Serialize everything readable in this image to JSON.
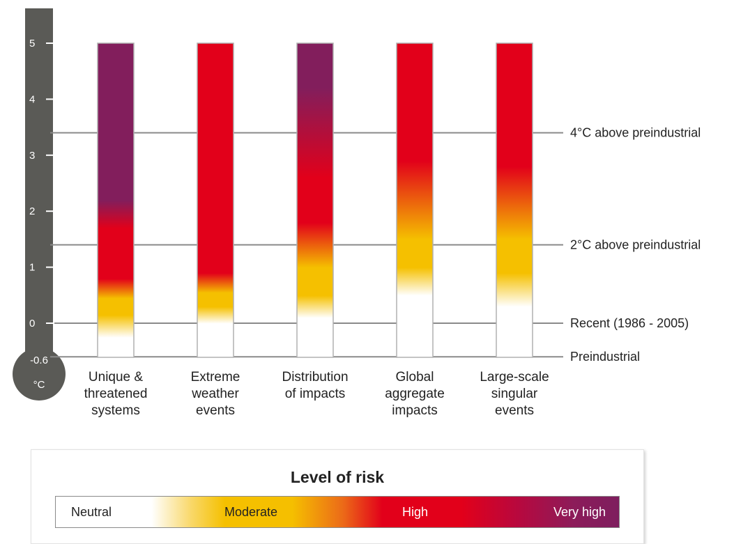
{
  "chart_data": {
    "type": "heatmap",
    "title": "",
    "ylabel": "°C",
    "ylim": [
      -0.6,
      5
    ],
    "y_ticks": [
      5,
      4,
      3,
      2,
      1,
      0
    ],
    "y_bottom_label": "-0.6",
    "y_unit": "°C",
    "reference_lines": [
      {
        "label": "4°C above preindustrial",
        "y": 3.4
      },
      {
        "label": "2°C above preindustrial",
        "y": 1.4
      },
      {
        "label": "Recent (1986 - 2005)",
        "y": 0
      },
      {
        "label": "Preindustrial",
        "y": -0.6
      }
    ],
    "categories": [
      {
        "label": [
          "Unique &",
          "threatened",
          "systems"
        ],
        "risk_transitions": [
          {
            "y": -0.6,
            "level": "neutral"
          },
          {
            "y": -0.25,
            "level": "neutral"
          },
          {
            "y": 0.15,
            "level": "moderate"
          },
          {
            "y": 0.45,
            "level": "moderate"
          },
          {
            "y": 0.8,
            "level": "high"
          },
          {
            "y": 1.7,
            "level": "high"
          },
          {
            "y": 2.2,
            "level": "very high"
          },
          {
            "y": 5,
            "level": "very high"
          }
        ]
      },
      {
        "label": [
          "Extreme",
          "weather",
          "events"
        ],
        "risk_transitions": [
          {
            "y": -0.6,
            "level": "neutral"
          },
          {
            "y": 0,
            "level": "neutral"
          },
          {
            "y": 0.3,
            "level": "moderate"
          },
          {
            "y": 0.55,
            "level": "moderate"
          },
          {
            "y": 0.9,
            "level": "high"
          },
          {
            "y": 5,
            "level": "high"
          }
        ]
      },
      {
        "label": [
          "Distribution",
          "of impacts"
        ],
        "risk_transitions": [
          {
            "y": -0.6,
            "level": "neutral"
          },
          {
            "y": 0.1,
            "level": "neutral"
          },
          {
            "y": 0.5,
            "level": "moderate"
          },
          {
            "y": 1.0,
            "level": "moderate"
          },
          {
            "y": 1.8,
            "level": "high"
          },
          {
            "y": 2.6,
            "level": "high"
          },
          {
            "y": 4.2,
            "level": "very high"
          },
          {
            "y": 5,
            "level": "very high"
          }
        ]
      },
      {
        "label": [
          "Global",
          "aggregate",
          "impacts"
        ],
        "risk_transitions": [
          {
            "y": -0.6,
            "level": "neutral"
          },
          {
            "y": 0.5,
            "level": "neutral"
          },
          {
            "y": 1.0,
            "level": "moderate"
          },
          {
            "y": 1.5,
            "level": "moderate"
          },
          {
            "y": 2.9,
            "level": "high"
          },
          {
            "y": 5,
            "level": "high"
          }
        ]
      },
      {
        "label": [
          "Large-scale",
          "singular",
          "events"
        ],
        "risk_transitions": [
          {
            "y": -0.6,
            "level": "neutral"
          },
          {
            "y": 0.3,
            "level": "neutral"
          },
          {
            "y": 0.9,
            "level": "moderate"
          },
          {
            "y": 1.5,
            "level": "moderate"
          },
          {
            "y": 2.8,
            "level": "high"
          },
          {
            "y": 5,
            "level": "high"
          }
        ]
      }
    ],
    "legend": {
      "title": "Level of risk",
      "levels": [
        "Neutral",
        "Moderate",
        "High",
        "Very high"
      ]
    }
  },
  "colors": {
    "neutral": "#ffffff",
    "moderate": "#f5c000",
    "high": "#e2001a",
    "very high": "#821e5c",
    "thermometer": "#5a5a56",
    "gridline": "#8a8a8a",
    "bar_border": "#b0b0b0"
  }
}
